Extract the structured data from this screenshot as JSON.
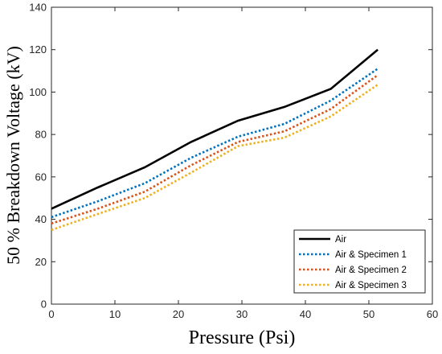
{
  "chart_data": {
    "type": "line",
    "xlabel": "Pressure (Psi)",
    "ylabel": "50 % Breakdown Voltage (kV)",
    "xlim": [
      0,
      60
    ],
    "ylim": [
      0,
      140
    ],
    "xticks": [
      0,
      10,
      20,
      30,
      40,
      50,
      60
    ],
    "yticks": [
      0,
      20,
      40,
      60,
      80,
      100,
      120,
      140
    ],
    "grid": false,
    "legend_position": "bottom-right",
    "series": [
      {
        "name": "Air",
        "color": "#000000",
        "style": "solid",
        "x": [
          0,
          7.3,
          14.7,
          22,
          29.4,
          36.7,
          44,
          51.4
        ],
        "y": [
          45,
          55,
          64.5,
          76.5,
          86.5,
          93,
          101.5,
          120
        ]
      },
      {
        "name": "Air & Specimen 1",
        "color": "#0072BD",
        "style": "dotted",
        "x": [
          0,
          7.3,
          14.7,
          22,
          29.4,
          36.7,
          44,
          51.4
        ],
        "y": [
          41,
          48.5,
          57,
          69,
          79,
          85,
          96,
          111
        ]
      },
      {
        "name": "Air & Specimen 2",
        "color": "#D95319",
        "style": "dotted",
        "x": [
          0,
          7.3,
          14.7,
          22,
          29.4,
          36.7,
          44,
          51.4
        ],
        "y": [
          38,
          45,
          53,
          65.5,
          76.5,
          81.5,
          92,
          108
        ]
      },
      {
        "name": "Air & Specimen 3",
        "color": "#EDB120",
        "style": "dotted",
        "x": [
          0,
          7.3,
          14.7,
          22,
          29.4,
          36.7,
          44,
          51.4
        ],
        "y": [
          35,
          42.5,
          50,
          62,
          74.5,
          78.5,
          88.5,
          103.5
        ]
      }
    ]
  }
}
